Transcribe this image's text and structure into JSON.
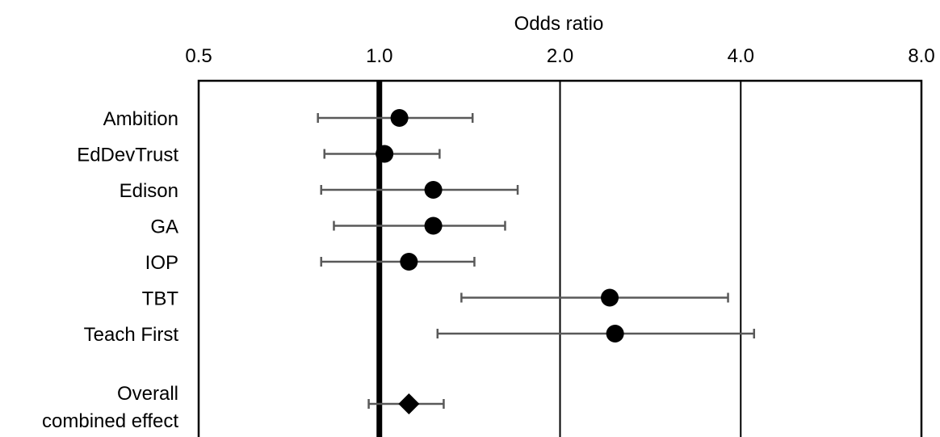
{
  "chart_data": {
    "type": "scatter",
    "subtype": "forest-plot",
    "xlabel": "Odds ratio",
    "x_scale": "log2",
    "xlim": [
      0.5,
      8.0
    ],
    "x_ticks": [
      "0.5",
      "1.0",
      "2.0",
      "4.0",
      "8.0"
    ],
    "x_tick_values": [
      0.5,
      1.0,
      2.0,
      4.0,
      8.0
    ],
    "reference_line": 1.0,
    "gridlines": [
      2.0,
      4.0
    ],
    "studies": [
      {
        "label": "Ambition",
        "or": 1.08,
        "lower": 0.79,
        "upper": 1.43
      },
      {
        "label": "EdDevTrust",
        "or": 1.02,
        "lower": 0.81,
        "upper": 1.26
      },
      {
        "label": "Edison",
        "or": 1.23,
        "lower": 0.8,
        "upper": 1.7
      },
      {
        "label": "GA",
        "or": 1.23,
        "lower": 0.84,
        "upper": 1.62
      },
      {
        "label": "IOP",
        "or": 1.12,
        "lower": 0.8,
        "upper": 1.44
      },
      {
        "label": "TBT",
        "or": 2.42,
        "lower": 1.37,
        "upper": 3.81
      },
      {
        "label": "Teach First",
        "or": 2.47,
        "lower": 1.25,
        "upper": 4.21
      }
    ],
    "overall": {
      "label_lines": [
        "Overall",
        "combined effect"
      ],
      "or": 1.12,
      "lower": 0.96,
      "upper": 1.28
    }
  }
}
